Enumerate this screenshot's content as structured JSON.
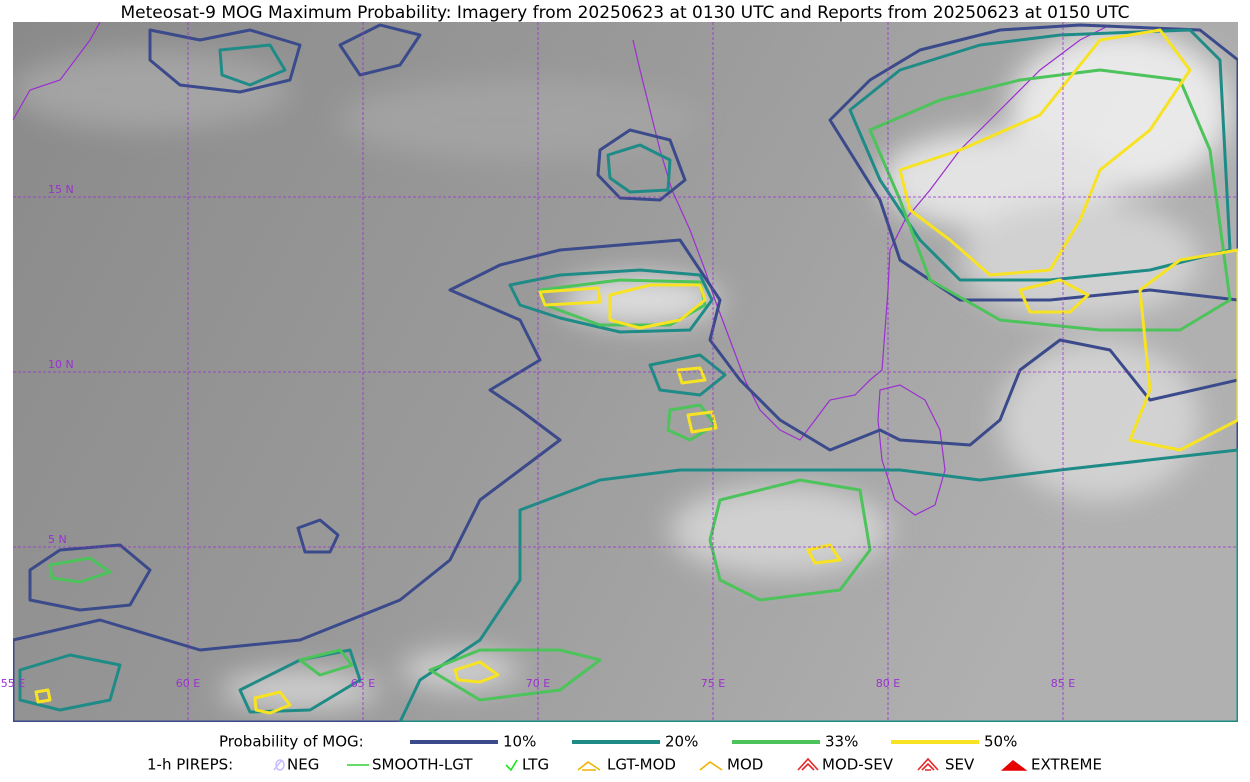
{
  "title": "Meteosat-9 MOG Maximum Probability: Imagery from 20250623 at 0130 UTC and Reports from 20250623 at 0150 UTC",
  "map": {
    "lat_labels": [
      "15 N",
      "10 N",
      "5 N"
    ],
    "lon_labels": [
      "55 E",
      "60 E",
      "65 E",
      "70 E",
      "75 E",
      "80 E",
      "85 E"
    ]
  },
  "legend": {
    "probability": {
      "label": "Probability of MOG:",
      "items": [
        {
          "label": "10%",
          "color": "#3b4a8b"
        },
        {
          "label": "20%",
          "color": "#1f8b87"
        },
        {
          "label": "33%",
          "color": "#4cc35b"
        },
        {
          "label": "50%",
          "color": "#f7e324"
        }
      ]
    },
    "pireps": {
      "label": "1-h PIREPS:",
      "items": [
        {
          "label": "NEG",
          "color": "#c8c0ff"
        },
        {
          "label": "SMOOTH-LGT",
          "color": "#32d232"
        },
        {
          "label": "LTG",
          "color": "#19e619"
        },
        {
          "label": "LGT-MOD",
          "color": "#f0b400"
        },
        {
          "label": "MOD",
          "color": "#f0b400"
        },
        {
          "label": "MOD-SEV",
          "color": "#e62828"
        },
        {
          "label": "SEV",
          "color": "#e62828"
        },
        {
          "label": "EXTREME",
          "color": "#e60000"
        }
      ]
    }
  }
}
